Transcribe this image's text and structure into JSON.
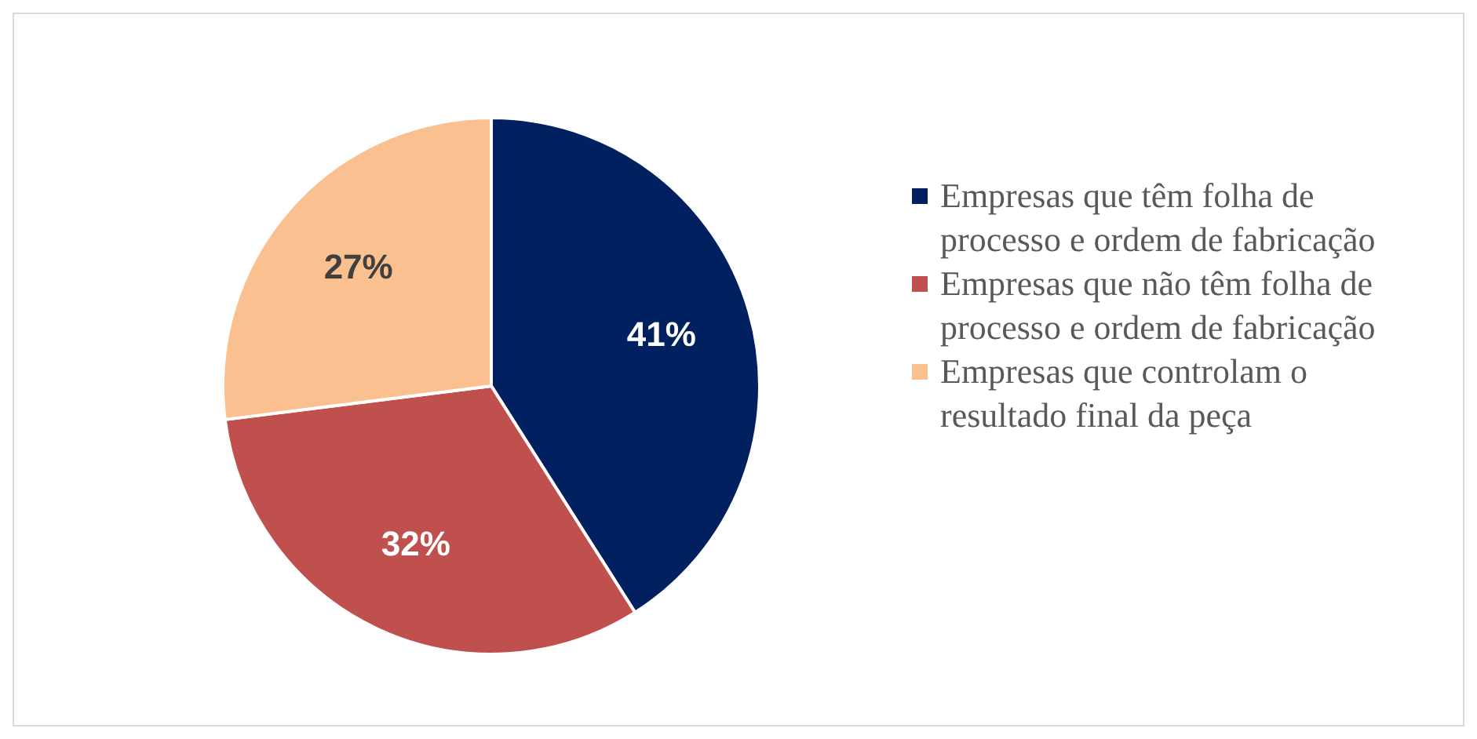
{
  "chart_data": {
    "type": "pie",
    "categories": [
      "Empresas que têm folha de processo e ordem de fabricação",
      "Empresas que não têm folha de processo e ordem de fabricação",
      "Empresas que controlam o resultado final da peça"
    ],
    "values": [
      41,
      32,
      27
    ],
    "colors": [
      "#002060",
      "#c0504d",
      "#fac090"
    ],
    "value_labels": [
      "41%",
      "32%",
      "27%"
    ],
    "legend": "right"
  }
}
